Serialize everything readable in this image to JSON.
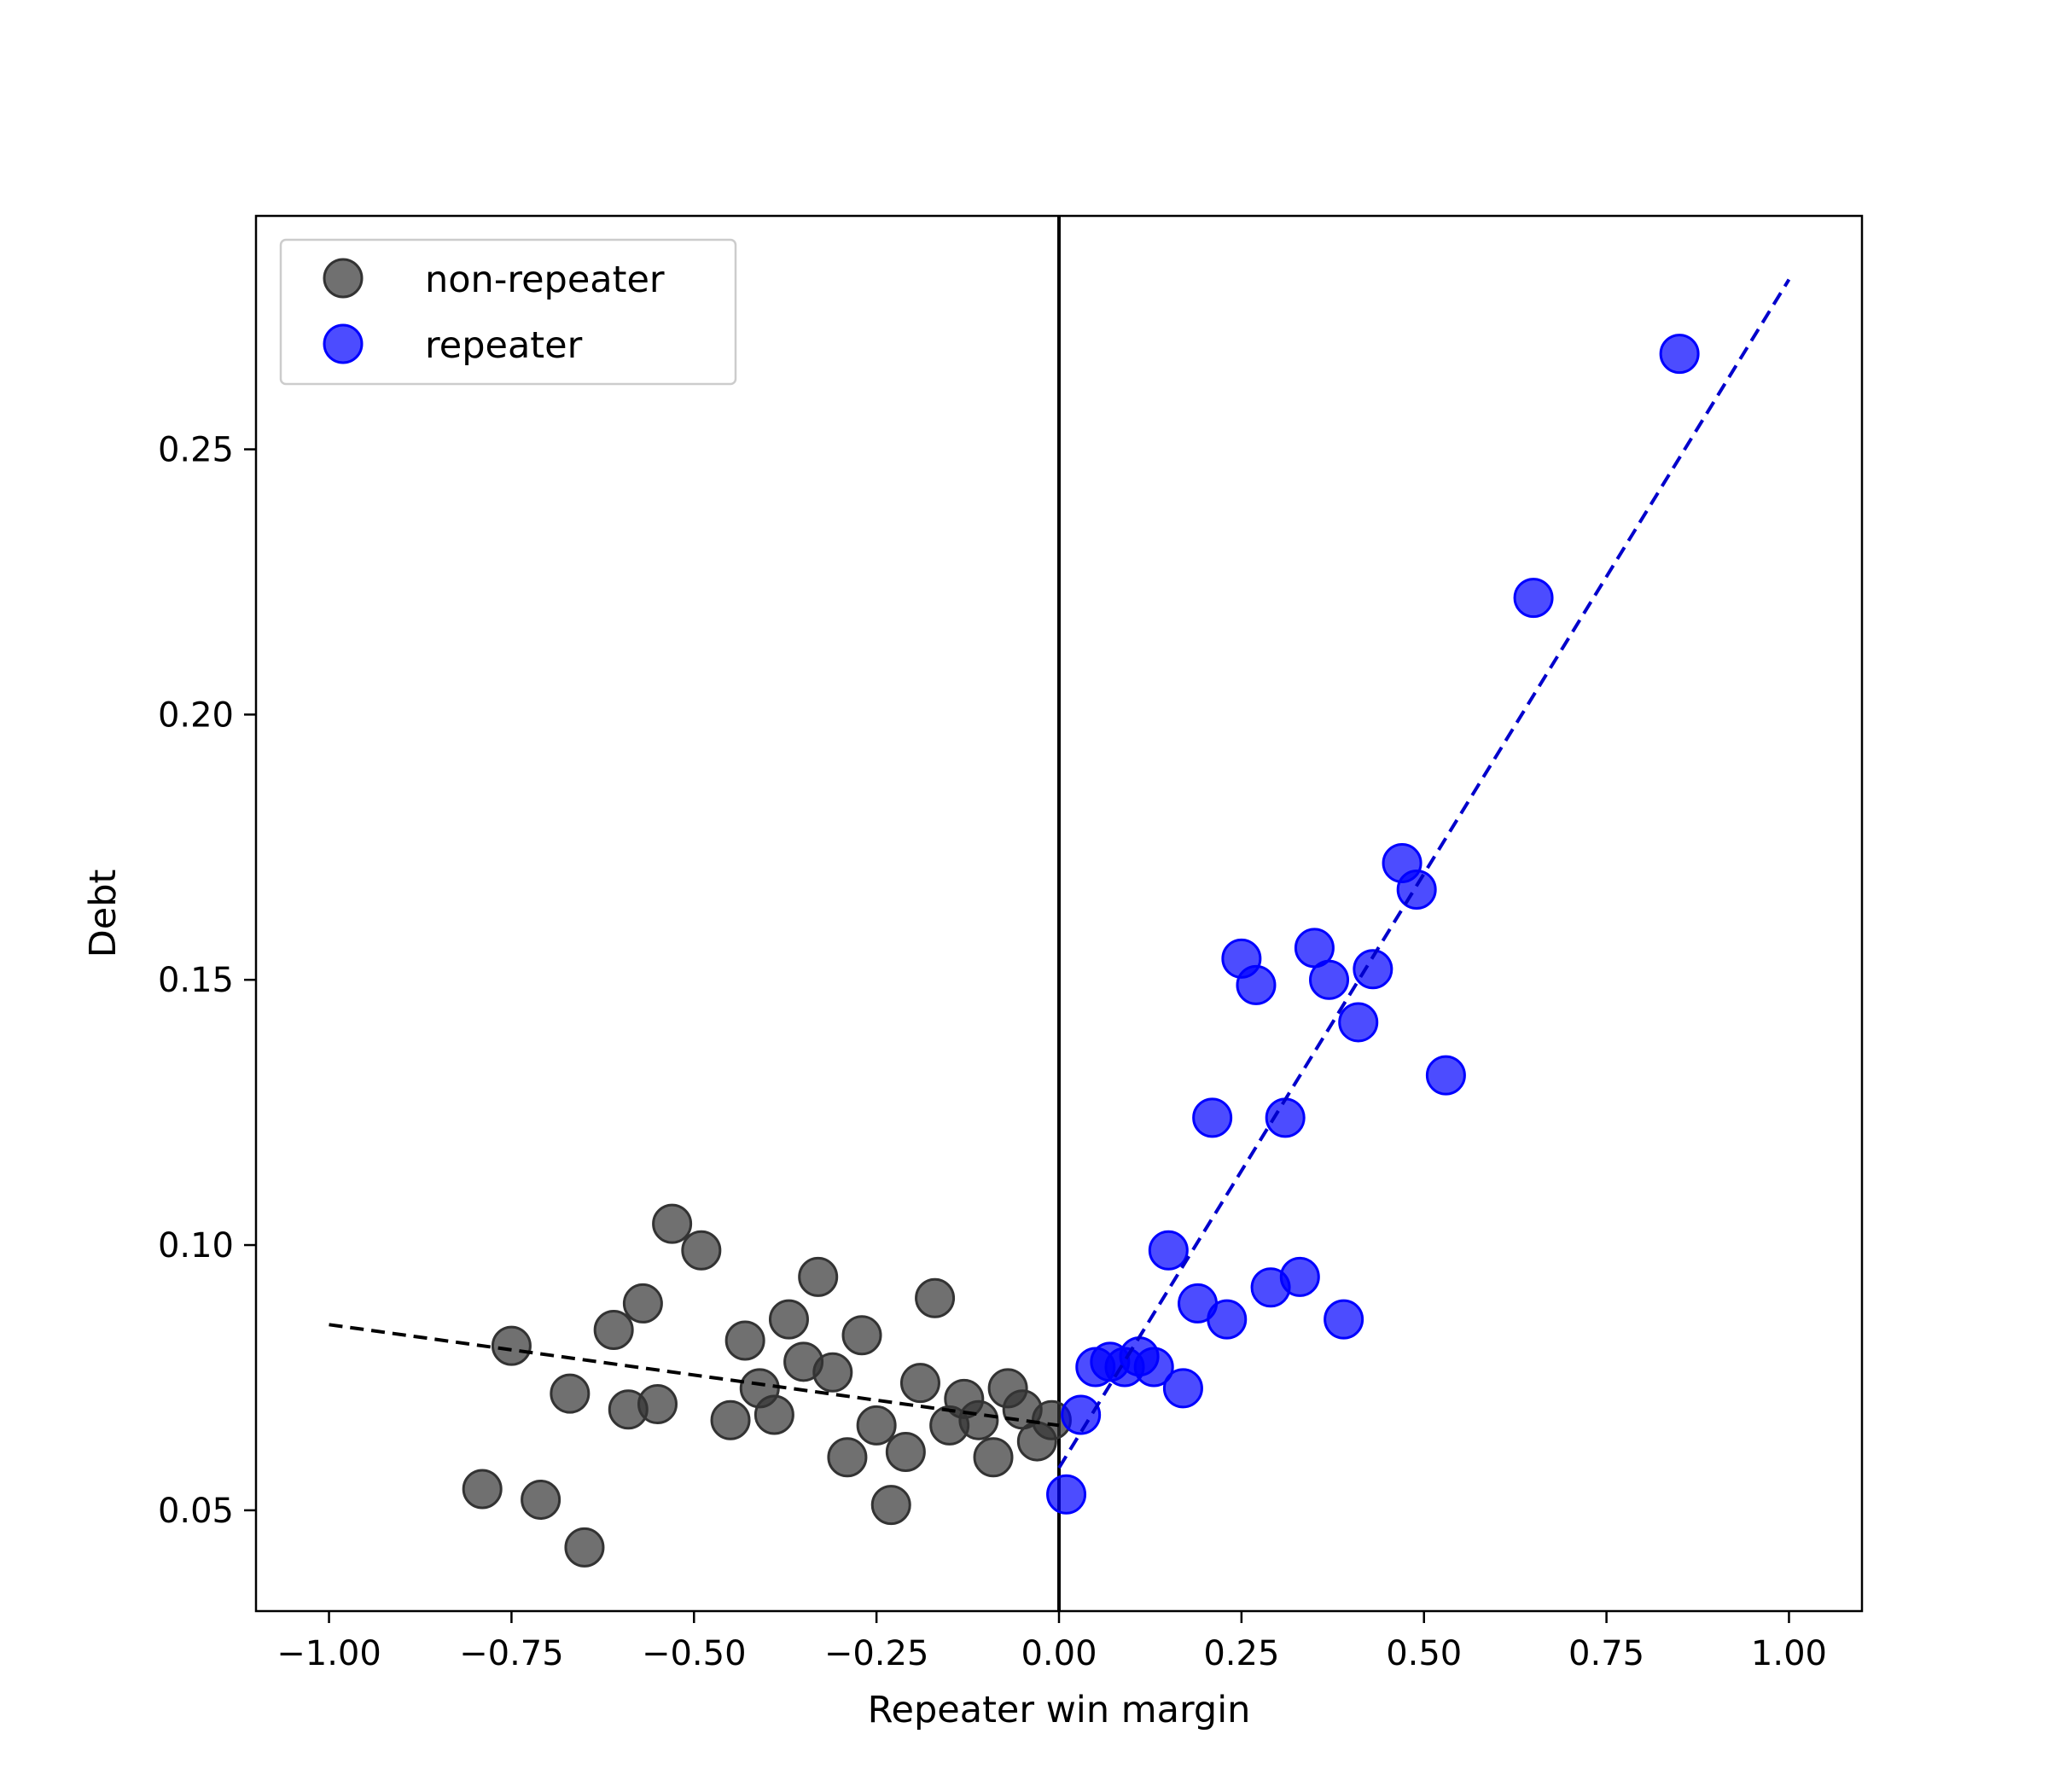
{
  "chart_data": {
    "type": "scatter",
    "title": "",
    "xlabel": "Repeater win margin",
    "ylabel": "Debt",
    "xlim": [
      -1.1,
      1.1
    ],
    "ylim": [
      0.031,
      0.294
    ],
    "xticks": [
      -1.0,
      -0.75,
      -0.5,
      -0.25,
      0.0,
      0.25,
      0.5,
      0.75,
      1.0
    ],
    "xtick_labels": [
      "−1.00",
      "−0.75",
      "−0.50",
      "−0.25",
      "0.00",
      "0.25",
      "0.50",
      "0.75",
      "1.00"
    ],
    "yticks": [
      0.05,
      0.1,
      0.15,
      0.2,
      0.25
    ],
    "ytick_labels": [
      "0.05",
      "0.10",
      "0.15",
      "0.20",
      "0.25"
    ],
    "grid": false,
    "legend_position": "top-left",
    "cutoff_line_x": 0.0,
    "series": [
      {
        "name": "non-repeater",
        "color": "#333333",
        "points": [
          [
            -0.79,
            0.054
          ],
          [
            -0.75,
            0.081
          ],
          [
            -0.71,
            0.052
          ],
          [
            -0.67,
            0.072
          ],
          [
            -0.65,
            0.043
          ],
          [
            -0.61,
            0.084
          ],
          [
            -0.59,
            0.069
          ],
          [
            -0.57,
            0.089
          ],
          [
            -0.55,
            0.07
          ],
          [
            -0.53,
            0.104
          ],
          [
            -0.49,
            0.099
          ],
          [
            -0.45,
            0.067
          ],
          [
            -0.43,
            0.082
          ],
          [
            -0.41,
            0.073
          ],
          [
            -0.39,
            0.068
          ],
          [
            -0.37,
            0.086
          ],
          [
            -0.35,
            0.078
          ],
          [
            -0.33,
            0.094
          ],
          [
            -0.31,
            0.076
          ],
          [
            -0.29,
            0.06
          ],
          [
            -0.27,
            0.083
          ],
          [
            -0.25,
            0.066
          ],
          [
            -0.23,
            0.051
          ],
          [
            -0.21,
            0.061
          ],
          [
            -0.19,
            0.074
          ],
          [
            -0.17,
            0.09
          ],
          [
            -0.15,
            0.066
          ],
          [
            -0.13,
            0.071
          ],
          [
            -0.11,
            0.067
          ],
          [
            -0.09,
            0.06
          ],
          [
            -0.07,
            0.073
          ],
          [
            -0.05,
            0.069
          ],
          [
            -0.03,
            0.063
          ],
          [
            -0.01,
            0.067
          ]
        ],
        "fit_line": {
          "x": [
            -1.0,
            0.0
          ],
          "y": [
            0.085,
            0.066
          ]
        }
      },
      {
        "name": "repeater",
        "color": "#0000ff",
        "points": [
          [
            0.01,
            0.053
          ],
          [
            0.03,
            0.068
          ],
          [
            0.05,
            0.077
          ],
          [
            0.07,
            0.078
          ],
          [
            0.09,
            0.077
          ],
          [
            0.11,
            0.079
          ],
          [
            0.13,
            0.077
          ],
          [
            0.15,
            0.099
          ],
          [
            0.17,
            0.073
          ],
          [
            0.19,
            0.089
          ],
          [
            0.21,
            0.124
          ],
          [
            0.23,
            0.086
          ],
          [
            0.25,
            0.154
          ],
          [
            0.27,
            0.149
          ],
          [
            0.29,
            0.092
          ],
          [
            0.31,
            0.124
          ],
          [
            0.33,
            0.094
          ],
          [
            0.35,
            0.156
          ],
          [
            0.37,
            0.15
          ],
          [
            0.39,
            0.086
          ],
          [
            0.41,
            0.142
          ],
          [
            0.43,
            0.152
          ],
          [
            0.47,
            0.172
          ],
          [
            0.49,
            0.167
          ],
          [
            0.53,
            0.132
          ],
          [
            0.65,
            0.222
          ],
          [
            0.85,
            0.268
          ]
        ],
        "fit_line": {
          "x": [
            0.0,
            1.0
          ],
          "y": [
            0.058,
            0.282
          ]
        }
      }
    ]
  }
}
